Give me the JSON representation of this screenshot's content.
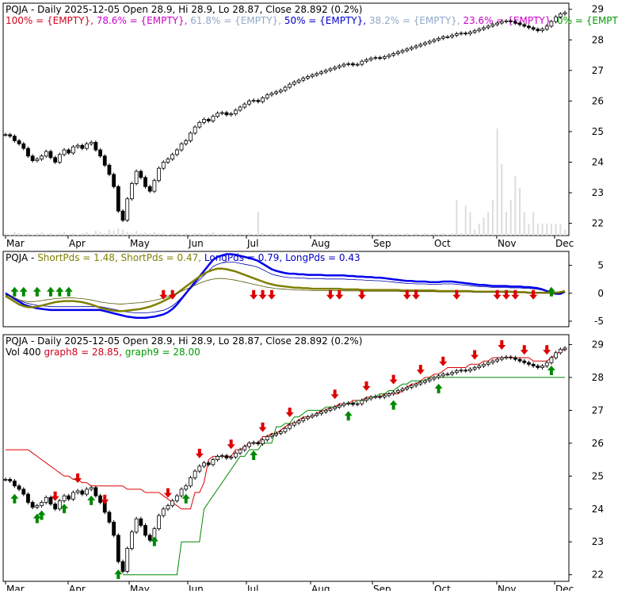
{
  "symbol": "PQJA",
  "chart_data": [
    {
      "type": "candlestick",
      "panel": "price-fib",
      "title": "PQJA - Daily 2025-12-05 Open 28.9, Hi 28.9, Lo 28.87, Close 28.892 (0.2%)",
      "legend": [
        {
          "text": "100% = {EMPTY},",
          "color": "#d0021b"
        },
        {
          "text": "78.6% = {EMPTY},",
          "color": "#cc00cc"
        },
        {
          "text": "61.8% = {EMPTY},",
          "color": "#8fa8c8"
        },
        {
          "text": "50% = {EMPTY},",
          "color": "#0000cc"
        },
        {
          "text": "38.2% = {EMPTY},",
          "color": "#8fa8c8"
        },
        {
          "text": "23.6% = {EMPTY},",
          "color": "#cc00cc"
        },
        {
          "text": "0% = {EMPTY}",
          "color": "#009900"
        }
      ],
      "yticks": [
        22,
        23,
        24,
        25,
        26,
        27,
        28,
        29
      ],
      "ylim": [
        21.6,
        29.2
      ],
      "months": [
        "Mar",
        "Apr",
        "May",
        "Jun",
        "Jul",
        "Aug",
        "Sep",
        "Oct",
        "Nov",
        "Dec"
      ],
      "closes": [
        24.9,
        24.85,
        24.7,
        24.6,
        24.45,
        24.2,
        24.05,
        24.1,
        24.2,
        24.35,
        24.15,
        24.0,
        24.25,
        24.4,
        24.3,
        24.5,
        24.55,
        24.45,
        24.6,
        24.65,
        24.4,
        24.2,
        23.9,
        23.6,
        23.2,
        22.4,
        22.1,
        22.8,
        23.3,
        23.7,
        23.5,
        23.2,
        23.05,
        23.4,
        23.8,
        24.0,
        24.1,
        24.25,
        24.4,
        24.6,
        24.7,
        24.95,
        25.15,
        25.3,
        25.4,
        25.35,
        25.5,
        25.6,
        25.62,
        25.55,
        25.58,
        25.7,
        25.8,
        25.9,
        26.0,
        26.02,
        25.98,
        26.1,
        26.2,
        26.25,
        26.3,
        26.35,
        26.45,
        26.55,
        26.62,
        26.68,
        26.75,
        26.8,
        26.85,
        26.9,
        26.95,
        27.0,
        27.05,
        27.1,
        27.15,
        27.2,
        27.22,
        27.18,
        27.2,
        27.3,
        27.35,
        27.4,
        27.42,
        27.4,
        27.45,
        27.5,
        27.55,
        27.6,
        27.65,
        27.7,
        27.75,
        27.8,
        27.85,
        27.9,
        27.95,
        28.0,
        28.05,
        28.1,
        28.1,
        28.15,
        28.2,
        28.22,
        28.2,
        28.25,
        28.3,
        28.35,
        28.4,
        28.45,
        28.5,
        28.55,
        28.6,
        28.62,
        28.6,
        28.55,
        28.5,
        28.45,
        28.4,
        28.35,
        28.3,
        28.35,
        28.45,
        28.6,
        28.75,
        28.85,
        28.892
      ],
      "volume": [
        0.02,
        0.01,
        0.03,
        0.02,
        0.01,
        0.02,
        0.01,
        0.02,
        0.03,
        0.01,
        0.02,
        0.01,
        0.02,
        0.03,
        0.01,
        0.02,
        0.01,
        0.02,
        0.03,
        0.01,
        0.04,
        0.03,
        0.02,
        0.05,
        0.04,
        0.06,
        0.05,
        0.03,
        0.02,
        0.04,
        0.02,
        0.03,
        0.02,
        0.03,
        0.02,
        0.02,
        0.01,
        0.02,
        0.02,
        0.01,
        0.02,
        0.01,
        0.02,
        0.02,
        0.01,
        0.02,
        0.03,
        0.01,
        0.02,
        0.01,
        0.02,
        0.01,
        0.02,
        0.01,
        0.02,
        0.01,
        0.2,
        0.02,
        0.01,
        0.02,
        0.01,
        0.02,
        0.01,
        0.02,
        0.01,
        0.02,
        0.01,
        0.02,
        0.01,
        0.02,
        0.01,
        0.02,
        0.01,
        0.02,
        0.01,
        0.02,
        0.01,
        0.02,
        0.01,
        0.02,
        0.01,
        0.02,
        0.01,
        0.02,
        0.01,
        0.02,
        0.01,
        0.02,
        0.01,
        0.02,
        0.01,
        0.02,
        0.01,
        0.02,
        0.01,
        0.02,
        0.01,
        0.02,
        0.01,
        0.02,
        0.3,
        0.02,
        0.25,
        0.2,
        0.05,
        0.1,
        0.15,
        0.2,
        0.3,
        0.9,
        0.6,
        0.2,
        0.3,
        0.5,
        0.4,
        0.2,
        0.1,
        0.2,
        0.1,
        0.1,
        0.1,
        0.1,
        0.1,
        0.1,
        0.05
      ]
    },
    {
      "type": "line",
      "panel": "short-long-pds",
      "title": "PQJA - ShortPds = 1.48, ShortPds = 0.47, LongPds = 0.79, LongPds = 0.43",
      "legend": [
        {
          "text": "PQJA -",
          "color": "#000000"
        },
        {
          "text": "ShortPds = 1.48,",
          "color": "#808000"
        },
        {
          "text": "ShortPds = 0.47,",
          "color": "#808000"
        },
        {
          "text": "LongPds = 0.79,",
          "color": "#0000cc"
        },
        {
          "text": "LongPds = 0.43",
          "color": "#0000cc"
        }
      ],
      "yticks": [
        5,
        0,
        -5
      ],
      "ylim": [
        -6,
        7.5
      ],
      "series": [
        {
          "name": "LongPds",
          "color": "#0000ee",
          "values": [
            0,
            -0.5,
            -1,
            -1.5,
            -2,
            -2.3,
            -2.5,
            -2.7,
            -2.8,
            -2.9,
            -3,
            -3,
            -3,
            -3,
            -3,
            -3,
            -3,
            -3,
            -3,
            -3,
            -3,
            -3,
            -3.2,
            -3.4,
            -3.6,
            -3.8,
            -4,
            -4.2,
            -4.3,
            -4.4,
            -4.4,
            -4.4,
            -4.3,
            -4.2,
            -4.0,
            -3.8,
            -3.4,
            -2.8,
            -2,
            -1,
            0,
            1,
            2,
            3,
            4,
            5,
            6,
            6.5,
            6.8,
            7,
            7,
            6.9,
            6.7,
            6.5,
            6.3,
            6.1,
            5.8,
            5.3,
            4.8,
            4.3,
            4,
            3.8,
            3.6,
            3.5,
            3.5,
            3.4,
            3.4,
            3.3,
            3.3,
            3.3,
            3.3,
            3.2,
            3.2,
            3.2,
            3.2,
            3.2,
            3.1,
            3.1,
            3.0,
            3.0,
            2.9,
            2.9,
            2.8,
            2.8,
            2.7,
            2.6,
            2.5,
            2.4,
            2.3,
            2.2,
            2.2,
            2.1,
            2.1,
            2.1,
            2.0,
            2.0,
            2.0,
            2.1,
            2.1,
            2.1,
            2.0,
            1.9,
            1.8,
            1.7,
            1.6,
            1.5,
            1.5,
            1.4,
            1.3,
            1.3,
            1.3,
            1.3,
            1.2,
            1.2,
            1.2,
            1.1,
            1.1,
            1.0,
            0.9,
            0.7,
            0.4,
            0.1,
            -0.1,
            -0.1,
            0.3
          ]
        },
        {
          "name": "ShortPds",
          "color": "#808000",
          "values": [
            -0.5,
            -1,
            -1.5,
            -2,
            -2.3,
            -2.5,
            -2.5,
            -2.4,
            -2.2,
            -2,
            -1.8,
            -1.6,
            -1.5,
            -1.4,
            -1.4,
            -1.4,
            -1.5,
            -1.6,
            -1.8,
            -2,
            -2.3,
            -2.6,
            -2.8,
            -3,
            -3.1,
            -3.2,
            -3.2,
            -3.1,
            -3,
            -2.9,
            -2.8,
            -2.6,
            -2.4,
            -2.1,
            -1.8,
            -1.4,
            -1,
            -0.5,
            0,
            0.6,
            1.2,
            1.8,
            2.4,
            3,
            3.5,
            3.9,
            4.2,
            4.4,
            4.4,
            4.3,
            4.1,
            3.9,
            3.6,
            3.3,
            3.0,
            2.7,
            2.4,
            2.1,
            1.8,
            1.6,
            1.4,
            1.3,
            1.2,
            1.1,
            1.0,
            1.0,
            0.9,
            0.9,
            0.8,
            0.8,
            0.8,
            0.8,
            0.8,
            0.8,
            0.8,
            0.7,
            0.7,
            0.7,
            0.7,
            0.6,
            0.6,
            0.6,
            0.6,
            0.6,
            0.6,
            0.6,
            0.6,
            0.6,
            0.5,
            0.5,
            0.5,
            0.5,
            0.5,
            0.5,
            0.5,
            0.5,
            0.4,
            0.4,
            0.4,
            0.4,
            0.4,
            0.4,
            0.4,
            0.4,
            0.3,
            0.3,
            0.3,
            0.3,
            0.3,
            0.3,
            0.3,
            0.3,
            0.3,
            0.2,
            0.2,
            0.2,
            0.1,
            0.1,
            0.1,
            0.1,
            0.1,
            0.1,
            0.1,
            0.2,
            0.4
          ]
        }
      ],
      "up_arrows": [
        2,
        4,
        7,
        10,
        12,
        14,
        121
      ],
      "down_arrows": [
        35,
        37,
        55,
        57,
        59,
        72,
        74,
        79,
        89,
        91,
        100,
        109,
        111,
        113,
        117
      ]
    },
    {
      "type": "candlestick",
      "panel": "volume-stops",
      "title": "PQJA - Daily 2025-12-05 Open 28.9, Hi 28.9, Lo 28.87, Close 28.892 (0.2%)",
      "legend": [
        {
          "text": "Vol 400",
          "color": "#000000"
        },
        {
          "text": "graph8 = 28.85,",
          "color": "#d0021b"
        },
        {
          "text": "graph9 = 28.00",
          "color": "#009900"
        }
      ],
      "yticks": [
        22,
        23,
        24,
        25,
        26,
        27,
        28,
        29
      ],
      "ylim": [
        21.8,
        29.3
      ],
      "months": [
        "Mar",
        "Apr",
        "May",
        "Jun",
        "Jul",
        "Aug",
        "Sep",
        "Oct",
        "Nov",
        "Dec"
      ],
      "graph8": [
        25.8,
        25.8,
        25.8,
        25.8,
        25.8,
        25.8,
        25.7,
        25.6,
        25.5,
        25.4,
        25.3,
        25.2,
        25.1,
        25.0,
        25.0,
        24.9,
        24.9,
        24.8,
        24.8,
        24.7,
        24.7,
        24.7,
        24.7,
        24.7,
        24.7,
        24.7,
        24.7,
        24.6,
        24.6,
        24.6,
        24.6,
        24.5,
        24.5,
        24.5,
        24.5,
        24.4,
        24.3,
        24.2,
        24.1,
        24.0,
        24.0,
        24.0,
        24.5,
        24.5,
        24.8,
        25.5,
        25.6,
        25.6,
        25.6,
        25.6,
        25.6,
        25.8,
        25.8,
        25.9,
        26.0,
        26.0,
        26.0,
        26.2,
        26.2,
        26.3,
        26.3,
        26.4,
        26.5,
        26.6,
        26.6,
        26.7,
        26.8,
        26.8,
        26.8,
        26.9,
        27.0,
        27.0,
        27.1,
        27.1,
        27.2,
        27.2,
        27.2,
        27.3,
        27.3,
        27.3,
        27.4,
        27.4,
        27.4,
        27.4,
        27.5,
        27.5,
        27.5,
        27.5,
        27.6,
        27.7,
        27.8,
        27.8,
        27.9,
        28.0,
        28.0,
        28.1,
        28.1,
        28.2,
        28.3,
        28.3,
        28.3,
        28.3,
        28.3,
        28.4,
        28.4,
        28.4,
        28.5,
        28.5,
        28.6,
        28.6,
        28.6,
        28.6,
        28.6,
        28.6,
        28.6,
        28.6,
        28.6,
        28.5,
        28.5,
        28.5,
        28.5,
        28.6,
        28.7,
        28.8,
        28.85
      ],
      "graph9": [
        null,
        null,
        null,
        null,
        null,
        null,
        null,
        null,
        null,
        null,
        null,
        null,
        null,
        null,
        null,
        null,
        null,
        null,
        null,
        null,
        null,
        null,
        null,
        null,
        null,
        null,
        22.0,
        22.0,
        22.0,
        22.0,
        22.0,
        22.0,
        22.0,
        22.0,
        22.0,
        22.0,
        22.0,
        22.0,
        22.0,
        23.0,
        23.0,
        23.0,
        23.0,
        23.0,
        24.0,
        24.2,
        24.4,
        24.6,
        24.8,
        25.0,
        25.2,
        25.4,
        25.6,
        25.6,
        25.8,
        25.8,
        25.8,
        26.0,
        26.0,
        26.0,
        26.5,
        26.5,
        26.6,
        26.6,
        26.8,
        26.8,
        26.9,
        27.0,
        27.0,
        27.0,
        27.0,
        27.1,
        27.1,
        27.1,
        27.1,
        27.2,
        27.2,
        27.2,
        27.3,
        27.3,
        27.3,
        27.4,
        27.4,
        27.5,
        27.5,
        27.6,
        27.6,
        27.7,
        27.8,
        27.8,
        27.9,
        27.9,
        27.9,
        27.9,
        28.0,
        28.0,
        28.0,
        28.0,
        28.0,
        28.0,
        28.0,
        28.0,
        28.0,
        28.0,
        28.0,
        28.0,
        28.0,
        28.0,
        28.0,
        28.0,
        28.0,
        28.0,
        28.0,
        28.0,
        28.0,
        28.0,
        28.0,
        28.0,
        28.0,
        28.0,
        28.0,
        28.0,
        28.0,
        28.0,
        28.0
      ],
      "up_arrows": [
        2,
        7,
        8,
        13,
        19,
        25,
        33,
        40,
        55,
        76,
        86,
        96,
        121
      ],
      "down_arrows": [
        11,
        16,
        22,
        36,
        43,
        50,
        57,
        63,
        73,
        80,
        86,
        92,
        97,
        104,
        110,
        115,
        120
      ]
    }
  ]
}
